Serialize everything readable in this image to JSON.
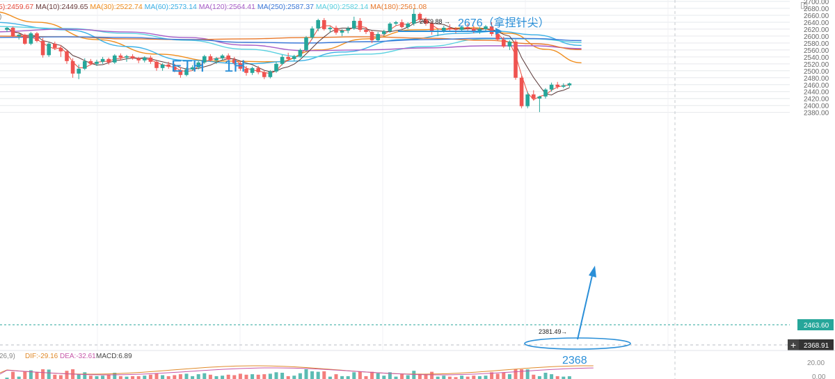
{
  "header": {
    "ma_items": [
      {
        "label": "5):2459.67",
        "color": "#e74c3c"
      },
      {
        "label": "MA(10):2449.65",
        "color": "#6a3d3d"
      },
      {
        "label": "MA(30):2522.74",
        "color": "#f08c1a"
      },
      {
        "label": "MA(60):2573.14",
        "color": "#3ab0e6"
      },
      {
        "label": "MA(120):2564.41",
        "color": "#a65cc6"
      },
      {
        "label": "MA(250):2587.37",
        "color": "#3a78d8"
      },
      {
        "label": "MA(90):2582.14",
        "color": "#58d0e0"
      },
      {
        "label": "MA(180):2561.08",
        "color": "#e8782a"
      }
    ],
    "left_clip": ")"
  },
  "annotations": {
    "asset": "ETH",
    "timeframe": "1H",
    "high_note": "2676（拿捏针尖）",
    "low_note": "2368",
    "high_marker": "2679.88",
    "low_marker": "2381.49"
  },
  "price_axis": {
    "ticks": [
      "2700.00",
      "2680.00",
      "2660.00",
      "2640.00",
      "2620.00",
      "2600.00",
      "2580.00",
      "2560.00",
      "2540.00",
      "2520.00",
      "2500.00",
      "2480.00",
      "2460.00",
      "2440.00",
      "2420.00",
      "2400.00",
      "2380.00"
    ],
    "current_price": "2463.60",
    "crosshair_price": "2368.91",
    "plus_symbol": "+"
  },
  "macd": {
    "label_prefix": "26,9)",
    "dif": "DIF:-29.16",
    "dea": "DEA:-32.61",
    "macd": "MACD:6.89",
    "tick": "20.00",
    "zero_tick": "0.00"
  },
  "colors": {
    "up": "#26a69a",
    "down": "#ef5350",
    "annotation": "#2a8fd8",
    "grid": "#e6e8ec",
    "current_price_line": "#26a69a",
    "crosshair_line": "#b8bcc4"
  },
  "chart_data": {
    "type": "candlestick",
    "title": "ETH 1H",
    "ylim": [
      2365,
      2700
    ],
    "candles": [
      [
        2618,
        2626,
        2612,
        2624
      ],
      [
        2624,
        2628,
        2596,
        2600
      ],
      [
        2600,
        2607,
        2590,
        2604
      ],
      [
        2604,
        2607,
        2575,
        2578
      ],
      [
        2578,
        2612,
        2574,
        2608
      ],
      [
        2608,
        2612,
        2582,
        2586
      ],
      [
        2586,
        2595,
        2538,
        2545
      ],
      [
        2545,
        2582,
        2540,
        2578
      ],
      [
        2578,
        2584,
        2560,
        2566
      ],
      [
        2566,
        2574,
        2540,
        2556
      ],
      [
        2556,
        2562,
        2520,
        2528
      ],
      [
        2528,
        2536,
        2480,
        2492
      ],
      [
        2492,
        2518,
        2476,
        2506
      ],
      [
        2506,
        2536,
        2502,
        2528
      ],
      [
        2528,
        2534,
        2516,
        2520
      ],
      [
        2520,
        2532,
        2514,
        2526
      ],
      [
        2526,
        2540,
        2520,
        2534
      ],
      [
        2534,
        2538,
        2518,
        2524
      ],
      [
        2524,
        2548,
        2520,
        2544
      ],
      [
        2544,
        2550,
        2530,
        2538
      ],
      [
        2538,
        2546,
        2526,
        2542
      ],
      [
        2542,
        2548,
        2532,
        2536
      ],
      [
        2536,
        2540,
        2522,
        2530
      ],
      [
        2530,
        2542,
        2524,
        2538
      ],
      [
        2538,
        2544,
        2520,
        2526
      ],
      [
        2526,
        2532,
        2500,
        2508
      ],
      [
        2508,
        2522,
        2500,
        2518
      ],
      [
        2518,
        2526,
        2506,
        2512
      ],
      [
        2512,
        2520,
        2496,
        2502
      ],
      [
        2502,
        2510,
        2480,
        2488
      ],
      [
        2488,
        2510,
        2484,
        2504
      ],
      [
        2504,
        2516,
        2500,
        2510
      ],
      [
        2510,
        2528,
        2504,
        2524
      ],
      [
        2524,
        2546,
        2520,
        2542
      ],
      [
        2542,
        2548,
        2526,
        2530
      ],
      [
        2530,
        2540,
        2520,
        2536
      ],
      [
        2536,
        2548,
        2530,
        2544
      ],
      [
        2544,
        2550,
        2528,
        2532
      ],
      [
        2532,
        2540,
        2516,
        2522
      ],
      [
        2522,
        2528,
        2500,
        2506
      ],
      [
        2506,
        2514,
        2486,
        2494
      ],
      [
        2494,
        2512,
        2488,
        2508
      ],
      [
        2508,
        2514,
        2490,
        2496
      ],
      [
        2496,
        2502,
        2476,
        2482
      ],
      [
        2482,
        2502,
        2478,
        2498
      ],
      [
        2498,
        2526,
        2494,
        2520
      ],
      [
        2520,
        2546,
        2516,
        2540
      ],
      [
        2540,
        2552,
        2528,
        2534
      ],
      [
        2534,
        2546,
        2528,
        2542
      ],
      [
        2542,
        2564,
        2538,
        2560
      ],
      [
        2560,
        2600,
        2556,
        2596
      ],
      [
        2596,
        2628,
        2590,
        2622
      ],
      [
        2622,
        2650,
        2614,
        2646
      ],
      [
        2646,
        2652,
        2616,
        2620
      ],
      [
        2620,
        2628,
        2610,
        2624
      ],
      [
        2624,
        2630,
        2604,
        2610
      ],
      [
        2610,
        2620,
        2600,
        2616
      ],
      [
        2616,
        2628,
        2608,
        2622
      ],
      [
        2622,
        2656,
        2618,
        2644
      ],
      [
        2644,
        2652,
        2612,
        2618
      ],
      [
        2618,
        2626,
        2606,
        2612
      ],
      [
        2612,
        2616,
        2580,
        2588
      ],
      [
        2588,
        2612,
        2584,
        2606
      ],
      [
        2606,
        2618,
        2600,
        2614
      ],
      [
        2614,
        2640,
        2610,
        2636
      ],
      [
        2636,
        2644,
        2630,
        2640
      ],
      [
        2640,
        2648,
        2622,
        2626
      ],
      [
        2626,
        2640,
        2620,
        2636
      ],
      [
        2636,
        2680,
        2630,
        2664
      ],
      [
        2664,
        2668,
        2640,
        2648
      ],
      [
        2648,
        2654,
        2630,
        2636
      ],
      [
        2636,
        2642,
        2604,
        2612
      ],
      [
        2612,
        2620,
        2600,
        2616
      ],
      [
        2616,
        2630,
        2610,
        2624
      ],
      [
        2624,
        2634,
        2614,
        2620
      ],
      [
        2620,
        2626,
        2608,
        2618
      ],
      [
        2618,
        2628,
        2612,
        2626
      ],
      [
        2626,
        2636,
        2616,
        2622
      ],
      [
        2622,
        2630,
        2608,
        2614
      ],
      [
        2614,
        2626,
        2606,
        2620
      ],
      [
        2620,
        2632,
        2614,
        2628
      ],
      [
        2628,
        2640,
        2600,
        2606
      ],
      [
        2606,
        2614,
        2586,
        2590
      ],
      [
        2590,
        2598,
        2566,
        2570
      ],
      [
        2570,
        2588,
        2560,
        2584
      ],
      [
        2584,
        2590,
        2474,
        2480
      ],
      [
        2480,
        2486,
        2392,
        2398
      ],
      [
        2398,
        2440,
        2392,
        2432
      ],
      [
        2432,
        2444,
        2414,
        2420
      ],
      [
        2420,
        2428,
        2381,
        2426
      ],
      [
        2426,
        2450,
        2420,
        2446
      ],
      [
        2446,
        2466,
        2440,
        2460
      ],
      [
        2460,
        2468,
        2448,
        2454
      ],
      [
        2454,
        2464,
        2450,
        2458
      ],
      [
        2458,
        2466,
        2452,
        2463.6
      ]
    ],
    "moving_averages": [
      {
        "name": "MA(30)",
        "color": "#f08c1a",
        "points": [
          [
            -3,
            2672
          ],
          [
            5,
            2640
          ],
          [
            15,
            2590
          ],
          [
            25,
            2548
          ],
          [
            35,
            2528
          ],
          [
            45,
            2526
          ],
          [
            52,
            2560
          ],
          [
            60,
            2592
          ],
          [
            68,
            2618
          ],
          [
            78,
            2624
          ],
          [
            84,
            2608
          ],
          [
            90,
            2562
          ],
          [
            96,
            2523
          ]
        ]
      },
      {
        "name": "MA(60)",
        "color": "#3ab0e6",
        "points": [
          [
            -3,
            2640
          ],
          [
            10,
            2618
          ],
          [
            20,
            2570
          ],
          [
            30,
            2530
          ],
          [
            40,
            2520
          ],
          [
            48,
            2528
          ],
          [
            56,
            2554
          ],
          [
            66,
            2590
          ],
          [
            76,
            2608
          ],
          [
            82,
            2614
          ],
          [
            88,
            2604
          ],
          [
            96,
            2573
          ]
        ]
      },
      {
        "name": "MA(90)",
        "color": "#58d0e0",
        "points": [
          [
            -3,
            2628
          ],
          [
            10,
            2622
          ],
          [
            20,
            2608
          ],
          [
            30,
            2588
          ],
          [
            40,
            2562
          ],
          [
            50,
            2540
          ],
          [
            60,
            2548
          ],
          [
            70,
            2570
          ],
          [
            80,
            2592
          ],
          [
            88,
            2592
          ],
          [
            96,
            2582
          ]
        ]
      },
      {
        "name": "MA(120)",
        "color": "#a65cc6",
        "points": [
          [
            -3,
            2612
          ],
          [
            10,
            2620
          ],
          [
            20,
            2612
          ],
          [
            30,
            2596
          ],
          [
            40,
            2574
          ],
          [
            50,
            2558
          ],
          [
            60,
            2560
          ],
          [
            70,
            2566
          ],
          [
            80,
            2572
          ],
          [
            88,
            2572
          ],
          [
            96,
            2564
          ]
        ]
      },
      {
        "name": "MA(180)",
        "color": "#e8782a",
        "points": [
          [
            -3,
            2600
          ],
          [
            10,
            2598
          ],
          [
            20,
            2592
          ],
          [
            30,
            2590
          ],
          [
            40,
            2592
          ],
          [
            50,
            2596
          ],
          [
            60,
            2598
          ],
          [
            70,
            2594
          ],
          [
            80,
            2588
          ],
          [
            88,
            2578
          ],
          [
            96,
            2561
          ]
        ]
      },
      {
        "name": "MA(250)",
        "color": "#3a78d8",
        "points": [
          [
            -3,
            2596
          ],
          [
            10,
            2598
          ],
          [
            20,
            2596
          ],
          [
            30,
            2590
          ],
          [
            40,
            2582
          ],
          [
            50,
            2580
          ],
          [
            60,
            2584
          ],
          [
            70,
            2590
          ],
          [
            80,
            2594
          ],
          [
            88,
            2593
          ],
          [
            96,
            2587
          ]
        ]
      }
    ]
  }
}
